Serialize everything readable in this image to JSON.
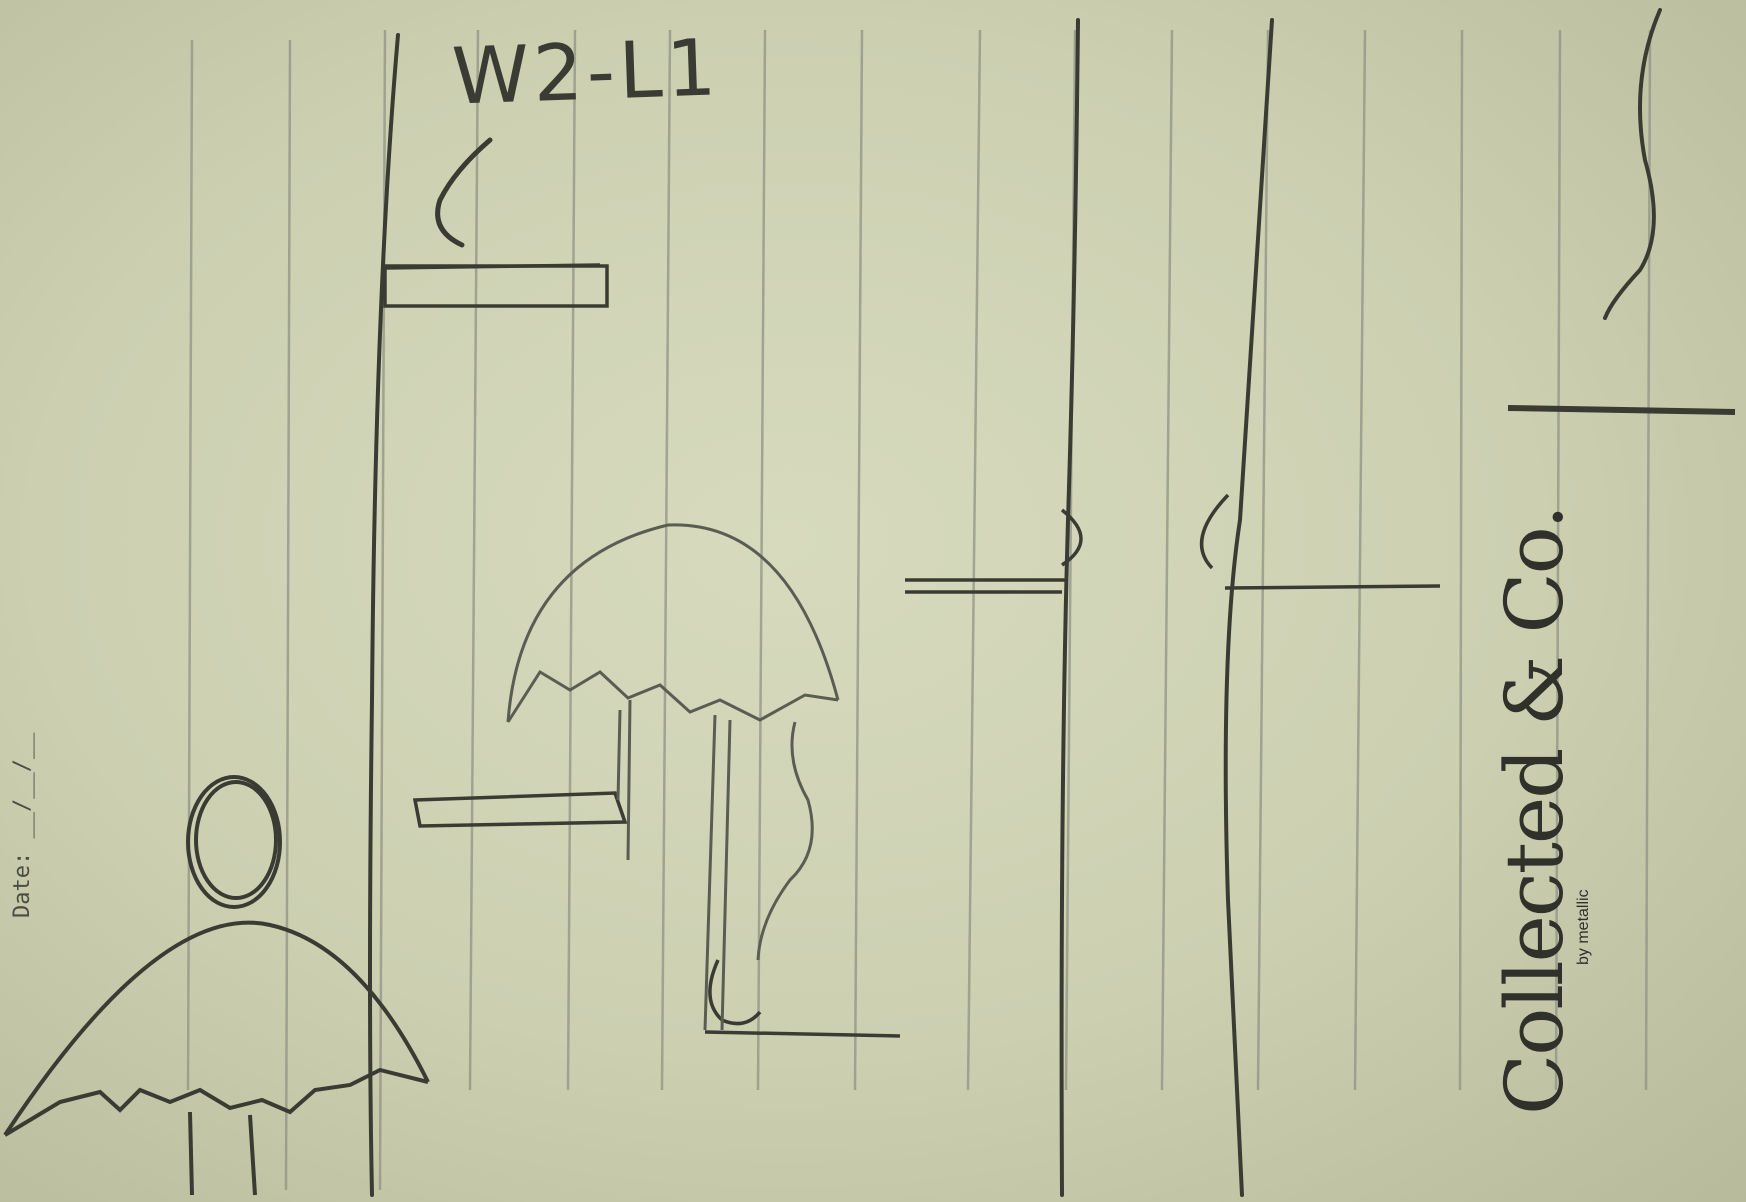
{
  "sketch": {
    "title": "W2-L1",
    "date_label": "Date: __/__/__"
  },
  "notebook": {
    "brand_name": "Collected & Co.",
    "brand_sub": "by metallic"
  },
  "colors": {
    "paper": "#d2d5b7",
    "rule_line": "#8f9384",
    "pencil": "#3a3c34"
  }
}
